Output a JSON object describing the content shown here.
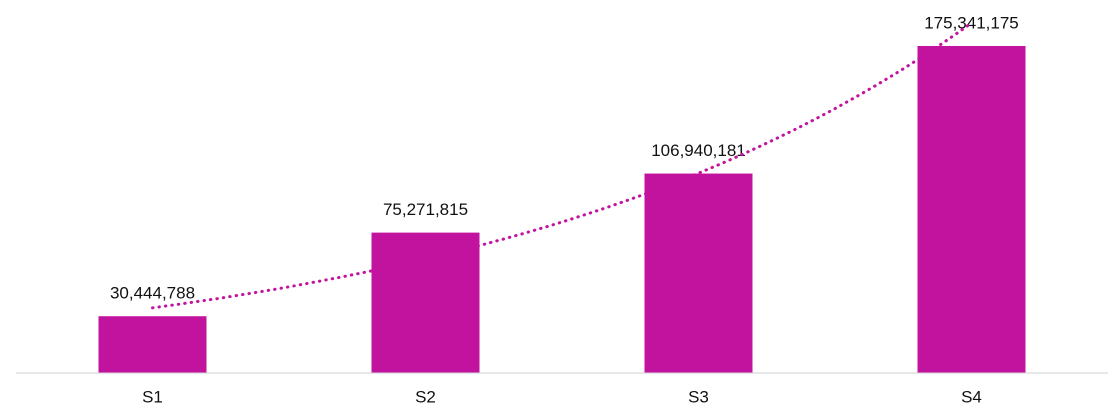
{
  "chart_data": {
    "type": "bar",
    "categories": [
      "S1",
      "S2",
      "S3",
      "S4"
    ],
    "values": [
      30444788,
      75271815,
      106940181,
      175341175
    ],
    "value_labels": [
      "30,444,788",
      "75,271,815",
      "106,940,181",
      "175,341,175"
    ],
    "color": "#c2139f",
    "ylim": [
      0,
      200000000
    ],
    "trendline": "exponential",
    "grid": false
  }
}
